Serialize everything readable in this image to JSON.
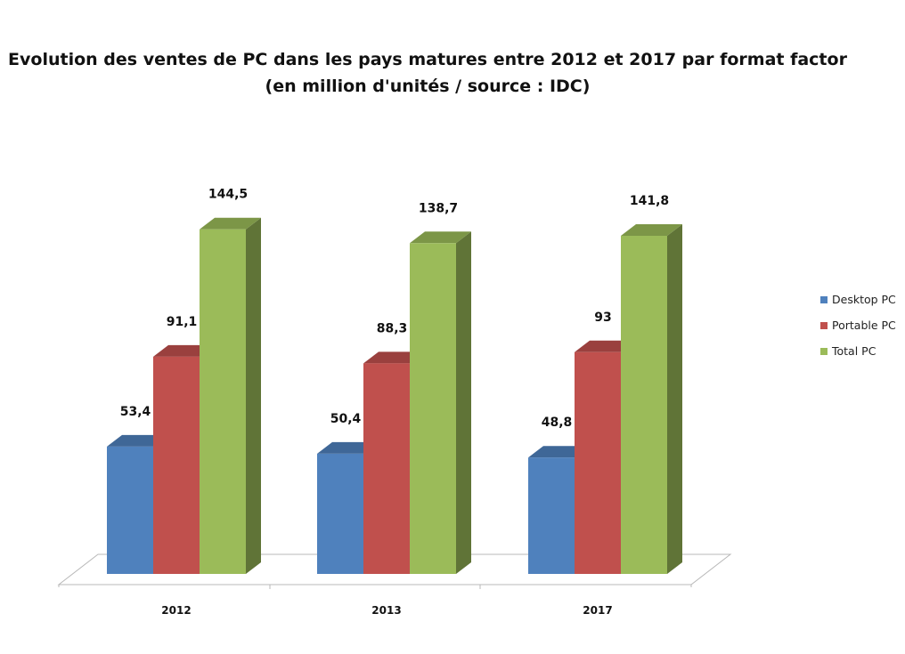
{
  "chart_data": {
    "type": "bar",
    "title": "Evolution des ventes de PC dans les pays matures entre 2012 et 2017 par format factor",
    "subtitle": "(en million d'unités / source : IDC)",
    "categories": [
      "2012",
      "2013",
      "2017"
    ],
    "series": [
      {
        "name": "Desktop PC",
        "values": [
          53.4,
          50.4,
          48.8
        ],
        "labels": [
          "53,4",
          "50,4",
          "48,8"
        ],
        "color": "#4f81bd"
      },
      {
        "name": "Portable PC",
        "values": [
          91.1,
          88.3,
          93
        ],
        "labels": [
          "91,1",
          "88,3",
          "93"
        ],
        "color": "#c0504d"
      },
      {
        "name": "Total PC",
        "values": [
          144.5,
          138.7,
          141.8
        ],
        "labels": [
          "144,5",
          "138,7",
          "141,8"
        ],
        "color": "#9bbb59"
      }
    ],
    "ylim": [
      0,
      160
    ],
    "grid": false,
    "legend": "right",
    "style": "3d-clustered-column"
  }
}
